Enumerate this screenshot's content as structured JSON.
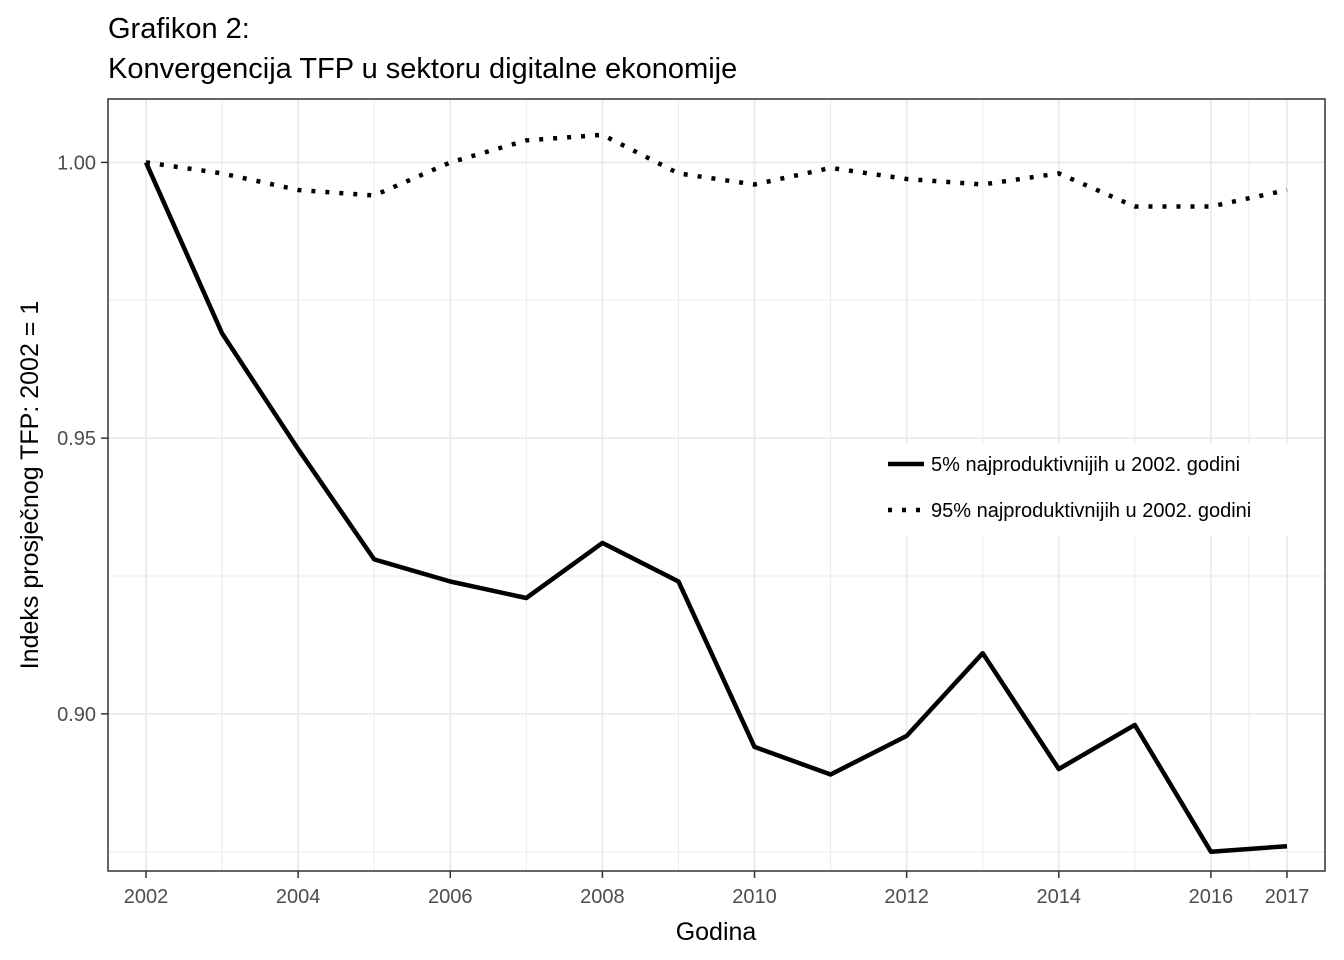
{
  "chart_data": {
    "type": "line",
    "title_line1": "Grafikon 2:",
    "title_line2": "Konvergencija TFP u sektoru digitalne ekonomije",
    "xlabel": "Godina",
    "ylabel": "Indeks prosječnog TFP: 2002 = 1",
    "x": [
      2002,
      2003,
      2004,
      2005,
      2006,
      2007,
      2008,
      2009,
      2010,
      2011,
      2012,
      2013,
      2014,
      2015,
      2016,
      2017
    ],
    "x_ticks": [
      2002,
      2004,
      2006,
      2008,
      2010,
      2012,
      2014,
      2016,
      2017
    ],
    "y_ticks": [
      0.9,
      0.95,
      1.0
    ],
    "y_tick_labels": [
      "0.90",
      "0.95",
      "1.00"
    ],
    "xlim": [
      2001.5,
      2017.5
    ],
    "ylim": [
      0.8715,
      1.0115
    ],
    "grid": true,
    "legend_position": "right-center",
    "series": [
      {
        "name": "5% najproduktivnijih u 2002. godini",
        "style": "solid",
        "color": "#000000",
        "values": [
          1.0,
          0.969,
          0.948,
          0.928,
          0.924,
          0.921,
          0.931,
          0.924,
          0.894,
          0.889,
          0.896,
          0.911,
          0.89,
          0.898,
          0.875,
          0.876
        ]
      },
      {
        "name": "95% najproduktivnijih u 2002. godini",
        "style": "dotted",
        "color": "#000000",
        "values": [
          1.0,
          0.998,
          0.995,
          0.994,
          1.0,
          1.004,
          1.005,
          0.998,
          0.996,
          0.999,
          0.997,
          0.996,
          0.998,
          0.992,
          0.992,
          0.995
        ]
      }
    ]
  }
}
